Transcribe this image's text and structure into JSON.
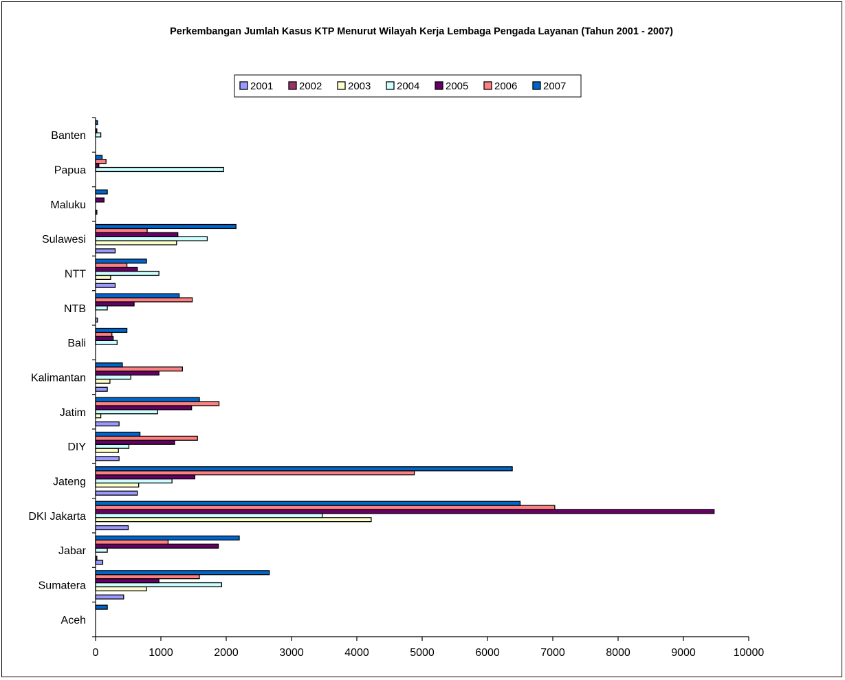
{
  "chart_data": {
    "type": "bar",
    "orientation": "horizontal",
    "title": "Perkembangan Jumlah Kasus KTP Menurut Wilayah Kerja Lembaga Pengada Layanan (Tahun 2001 - 2007)",
    "xlabel": "",
    "ylabel": "",
    "xlim": [
      0,
      10000
    ],
    "xticks": [
      0,
      1000,
      2000,
      3000,
      4000,
      5000,
      6000,
      7000,
      8000,
      9000,
      10000
    ],
    "grid": false,
    "legend_position": "top",
    "categories": [
      "Aceh",
      "Sumatera",
      "Jabar",
      "DKI Jakarta",
      "Jateng",
      "DIY",
      "Jatim",
      "Kalimantan",
      "Bali",
      "NTB",
      "NTT",
      "Sulawesi",
      "Maluku",
      "Papua",
      "Banten"
    ],
    "series": [
      {
        "name": "2001",
        "color": "#9999FF",
        "values": [
          0,
          430,
          110,
          500,
          640,
          360,
          360,
          180,
          0,
          30,
          300,
          300,
          0,
          0,
          0
        ]
      },
      {
        "name": "2002",
        "color": "#993366",
        "values": [
          0,
          0,
          20,
          0,
          0,
          0,
          0,
          0,
          0,
          0,
          0,
          0,
          20,
          0,
          0
        ]
      },
      {
        "name": "2003",
        "color": "#FFFFCC",
        "values": [
          0,
          780,
          0,
          4220,
          660,
          350,
          80,
          220,
          0,
          0,
          230,
          1240,
          0,
          0,
          0
        ]
      },
      {
        "name": "2004",
        "color": "#CCFFFF",
        "values": [
          0,
          1930,
          180,
          3470,
          1170,
          510,
          950,
          540,
          330,
          180,
          970,
          1710,
          0,
          1960,
          80
        ]
      },
      {
        "name": "2005",
        "color": "#660066",
        "values": [
          0,
          970,
          1880,
          9470,
          1520,
          1210,
          1470,
          970,
          270,
          590,
          640,
          1260,
          130,
          50,
          20
        ]
      },
      {
        "name": "2006",
        "color": "#FF8080",
        "values": [
          0,
          1590,
          1110,
          7030,
          4880,
          1560,
          1890,
          1330,
          250,
          1480,
          480,
          790,
          0,
          160,
          0
        ]
      },
      {
        "name": "2007",
        "color": "#0066CC",
        "values": [
          180,
          2660,
          2200,
          6500,
          6380,
          680,
          1590,
          410,
          480,
          1280,
          780,
          2150,
          180,
          100,
          30
        ]
      }
    ]
  }
}
